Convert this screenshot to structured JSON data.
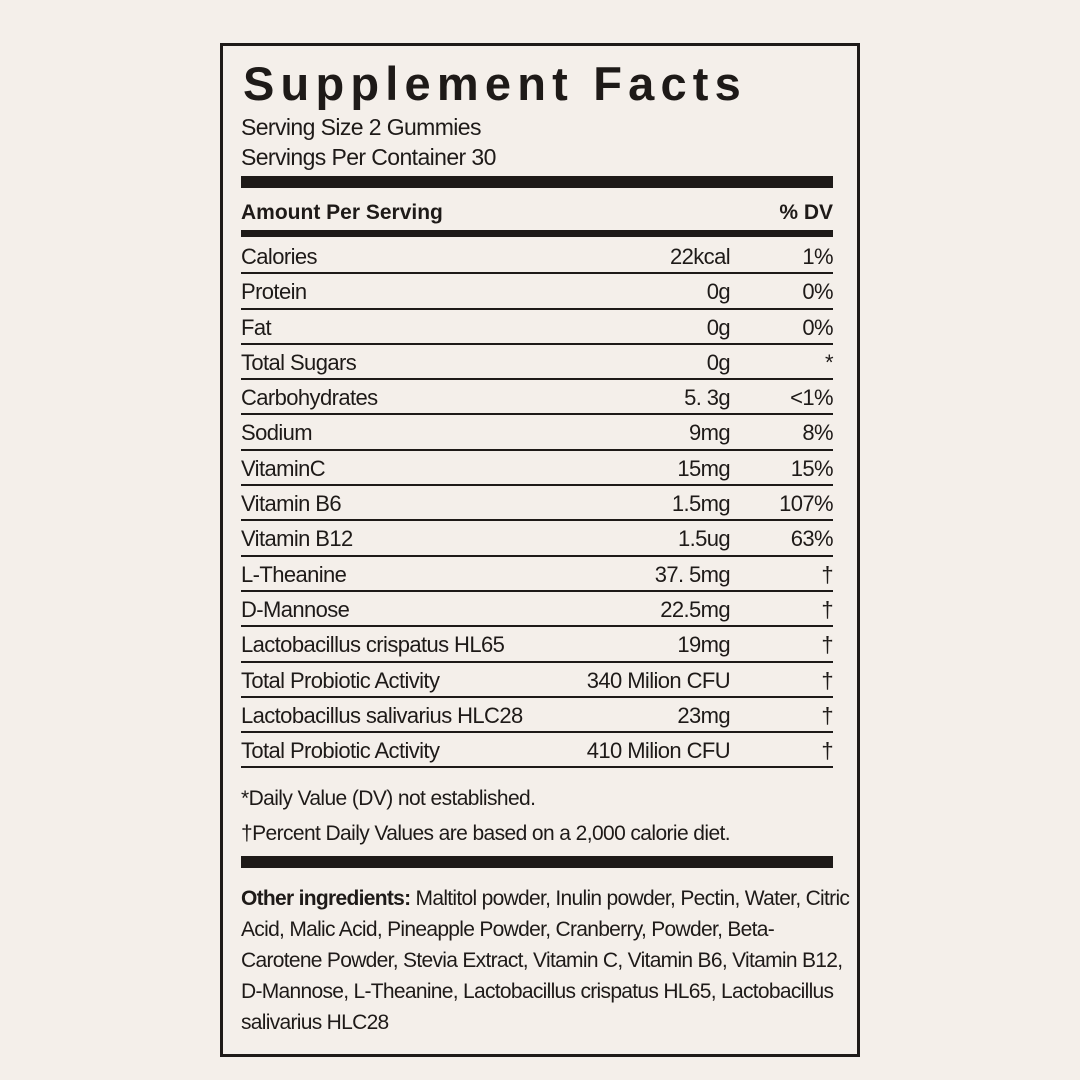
{
  "title": "Supplement Facts",
  "serving_size": "Serving Size 2 Gummies",
  "servings_per_container": "Servings Per Container 30",
  "header": {
    "amount": "Amount Per Serving",
    "dv": "% DV"
  },
  "rows": [
    {
      "name": "Calories",
      "amount": "22kcal",
      "dv": "1%"
    },
    {
      "name": "Protein",
      "amount": "0g",
      "dv": "0%"
    },
    {
      "name": "Fat",
      "amount": "0g",
      "dv": "0%"
    },
    {
      "name": "Total Sugars",
      "amount": "0g",
      "dv": "*"
    },
    {
      "name": "Carbohydrates",
      "amount": "5. 3g",
      "dv": "<1%"
    },
    {
      "name": "Sodium",
      "amount": "9mg",
      "dv": "8%"
    },
    {
      "name": "VitaminC",
      "amount": "15mg",
      "dv": "15%"
    },
    {
      "name": "Vitamin B6",
      "amount": "1.5mg",
      "dv": "107%"
    },
    {
      "name": "Vitamin B12",
      "amount": "1.5ug",
      "dv": "63%"
    },
    {
      "name": "L-Theanine",
      "amount": "37. 5mg",
      "dv": "†"
    },
    {
      "name": "D-Mannose",
      "amount": "22.5mg",
      "dv": "†"
    },
    {
      "name": "Lactobacillus crispatus HL65",
      "amount": "19mg",
      "dv": "†"
    },
    {
      "name": "Total Probiotic Activity",
      "amount": "340 Milion CFU",
      "dv": "†"
    },
    {
      "name": "Lactobacillus salivarius HLC28",
      "amount": "23mg",
      "dv": "†"
    },
    {
      "name": "Total Probiotic Activity",
      "amount": "410 Milion CFU",
      "dv": "†"
    }
  ],
  "footnotes": [
    "*Daily Value (DV) not established.",
    "†Percent Daily Values are based on a 2,000 calorie diet."
  ],
  "ingredients": {
    "label": "Other ingredients:",
    "text": " Maltitol powder, Inulin powder, Pectin, Water, Citric Acid, Malic Acid, Pineapple Powder, Cranberry, Powder, Beta-Carotene Powder, Stevia Extract, Vitamin C, Vitamin B6, Vitamin B12, D-Mannose, L-Theanine, Lactobacillus crispatus HL65, Lactobacillus salivarius HLC28"
  }
}
